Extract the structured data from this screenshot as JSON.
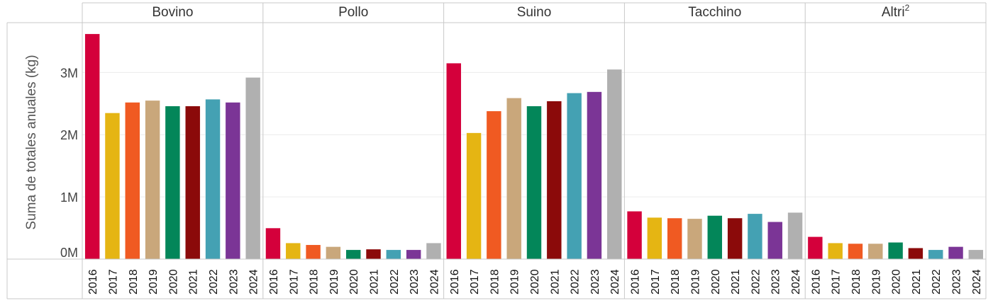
{
  "chart_data": {
    "type": "bar",
    "ylabel": "Suma de totales anuales (kg)",
    "ylim": [
      0,
      3800000
    ],
    "yticks": [
      0,
      1000000,
      2000000,
      3000000
    ],
    "ytick_labels": [
      "0M",
      "1M",
      "2M",
      "3M"
    ],
    "grid": true,
    "categories": [
      "2016",
      "2017",
      "2018",
      "2019",
      "2020",
      "2021",
      "2022",
      "2023",
      "2024"
    ],
    "category_colors": [
      "#d4003b",
      "#e5b513",
      "#f05a22",
      "#c9a77b",
      "#038659",
      "#8b0a0a",
      "#44a1b3",
      "#7b3596",
      "#b0b0b0"
    ],
    "panels": [
      {
        "name": "Bovino",
        "sup": "",
        "values": [
          3620000,
          2350000,
          2520000,
          2550000,
          2460000,
          2460000,
          2570000,
          2520000,
          2920000
        ]
      },
      {
        "name": "Pollo",
        "sup": "",
        "values": [
          500000,
          260000,
          230000,
          200000,
          150000,
          160000,
          150000,
          150000,
          260000
        ]
      },
      {
        "name": "Suino",
        "sup": "",
        "values": [
          3150000,
          2030000,
          2380000,
          2590000,
          2460000,
          2540000,
          2670000,
          2690000,
          3050000
        ]
      },
      {
        "name": "Tacchino",
        "sup": "",
        "values": [
          770000,
          670000,
          660000,
          650000,
          700000,
          660000,
          730000,
          600000,
          750000
        ]
      },
      {
        "name": "Altri",
        "sup": "2",
        "values": [
          360000,
          260000,
          250000,
          250000,
          270000,
          180000,
          150000,
          200000,
          150000
        ]
      }
    ]
  }
}
